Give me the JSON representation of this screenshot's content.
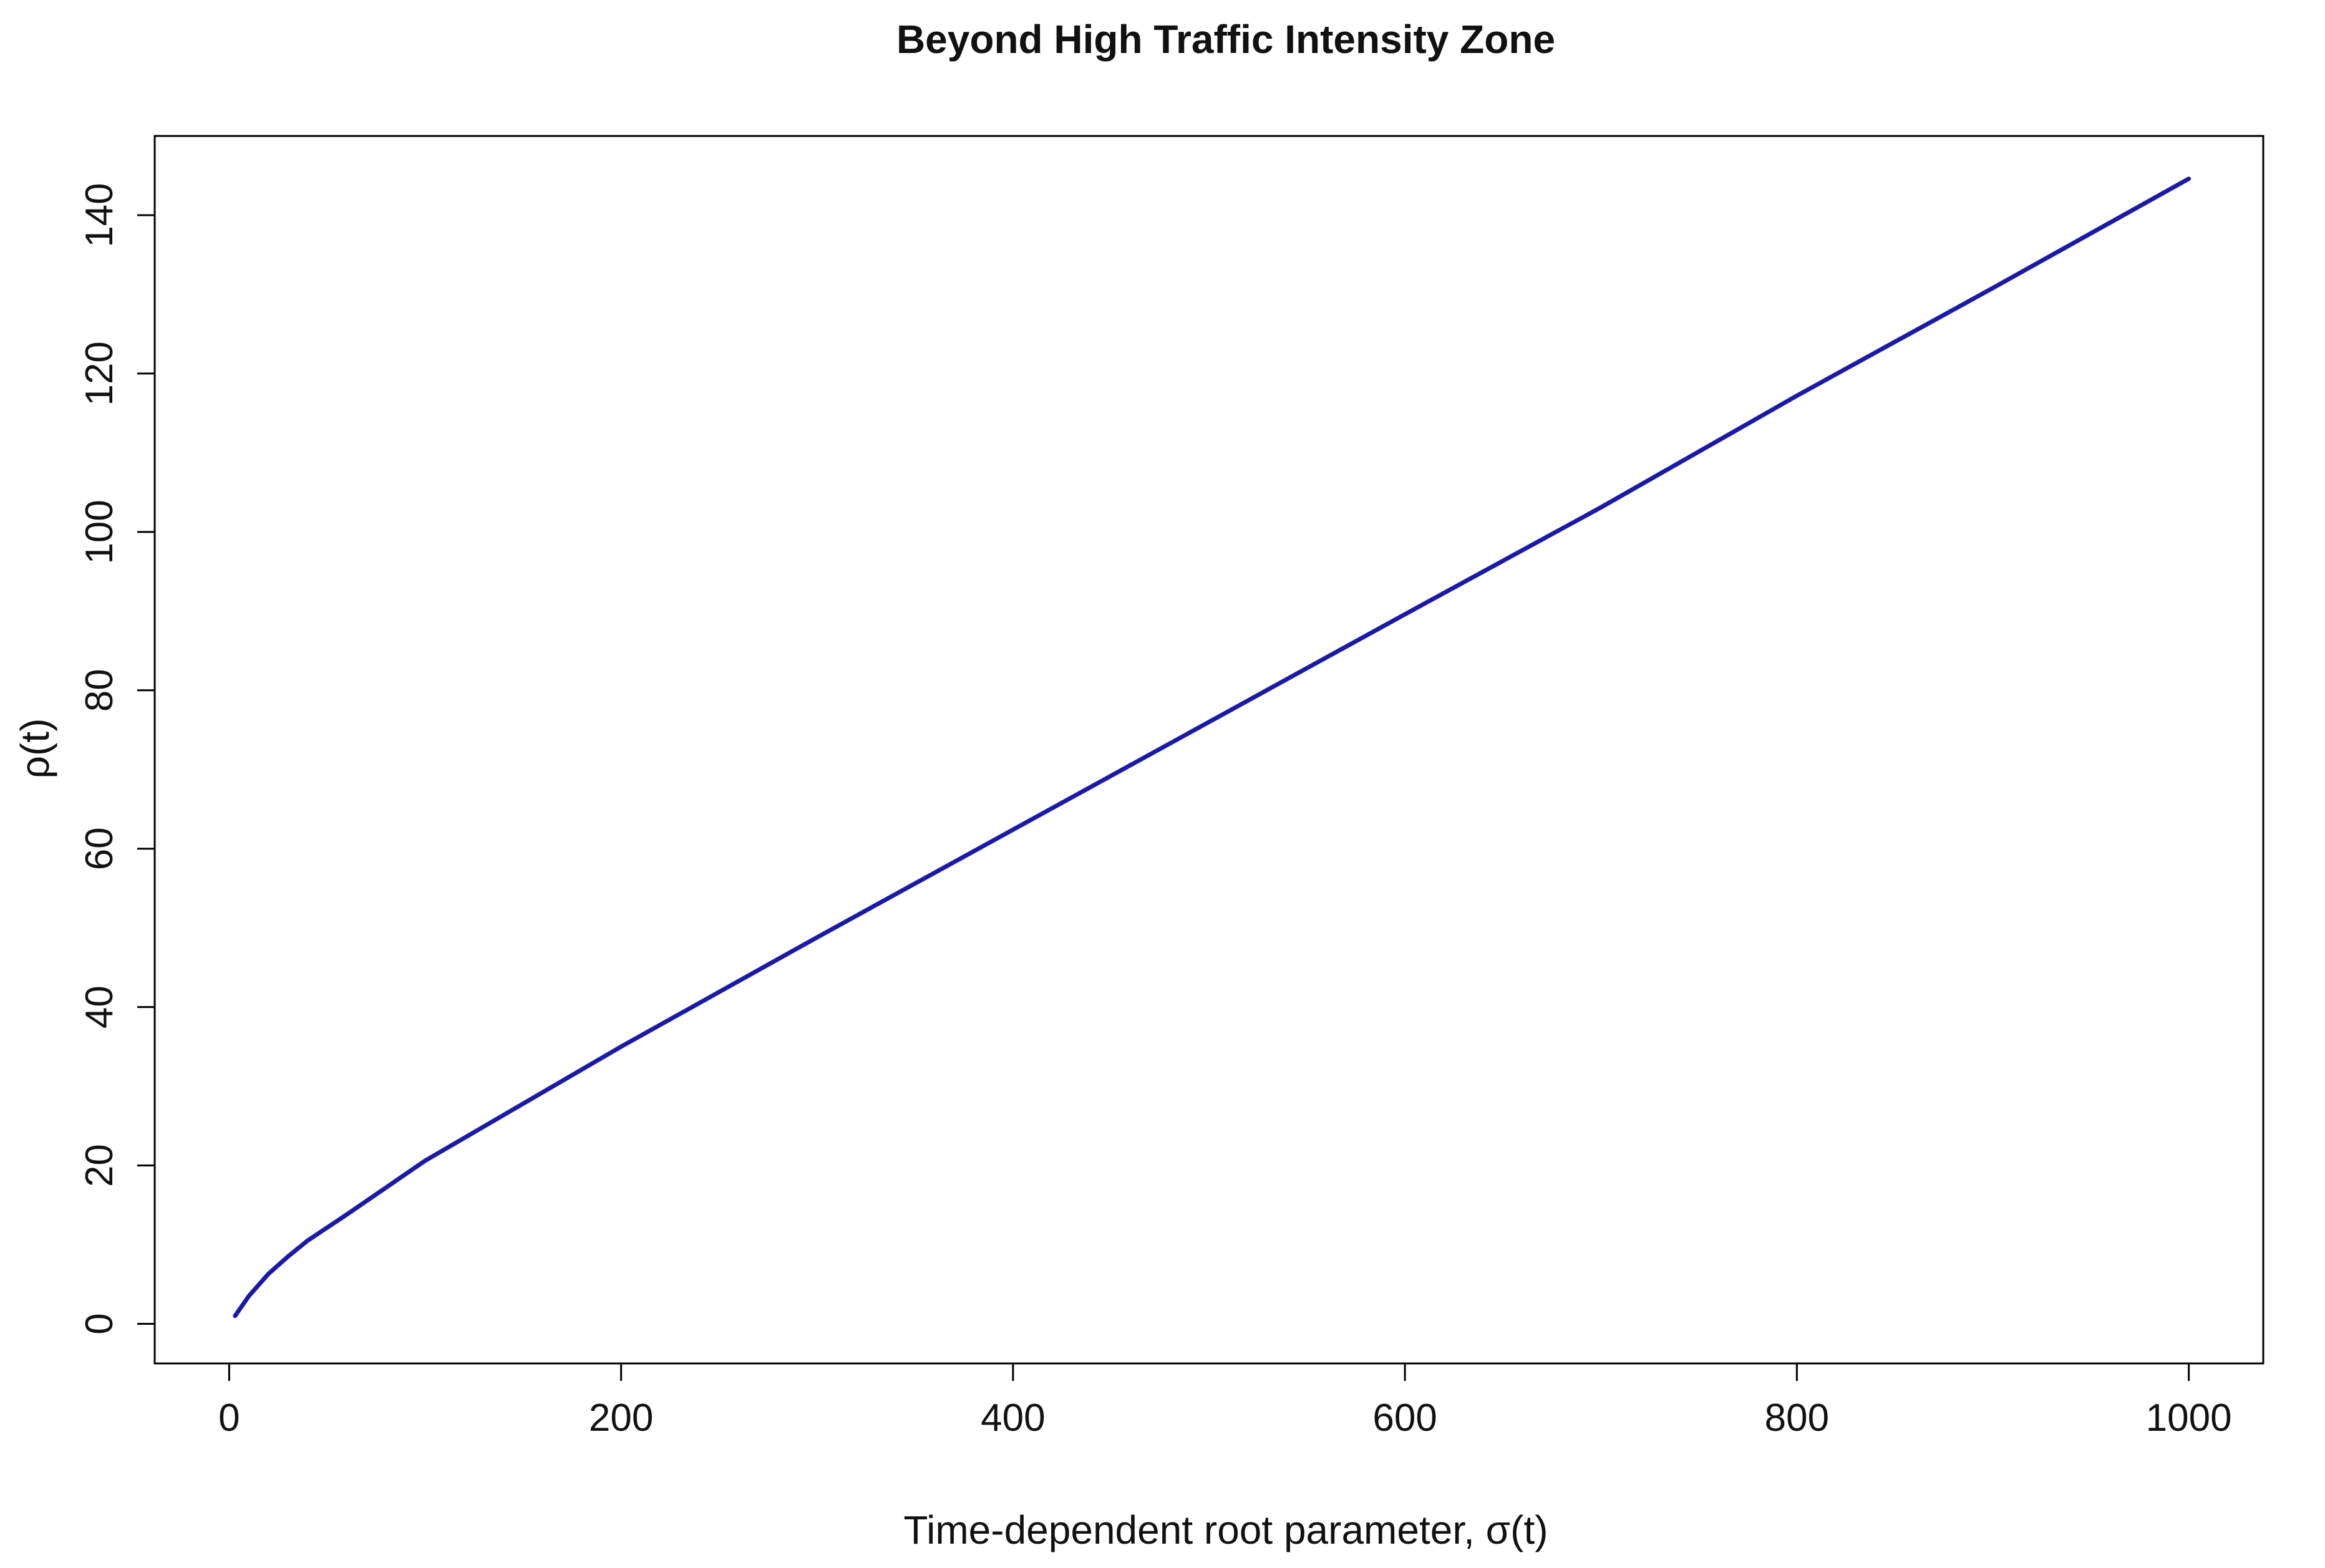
{
  "chart_data": {
    "type": "line",
    "title": "Beyond High Traffic Intensity Zone",
    "xlabel": "Time-dependent root parameter, σ(t)",
    "ylabel": "ρ(t)",
    "xlim": [
      -38,
      1038
    ],
    "ylim": [
      -5,
      150
    ],
    "x_ticks": [
      0,
      200,
      400,
      600,
      800,
      1000
    ],
    "y_ticks": [
      0,
      20,
      40,
      60,
      80,
      100,
      120,
      140
    ],
    "x_tick_labels": [
      "0",
      "200",
      "400",
      "600",
      "800",
      "1000"
    ],
    "y_tick_labels": [
      "0",
      "20",
      "40",
      "60",
      "80",
      "100",
      "120",
      "140"
    ],
    "grid": false,
    "line_color": "#1a1aa6",
    "series": [
      {
        "x": [
          3,
          10,
          20,
          30,
          40,
          60,
          80,
          100,
          150,
          200,
          300,
          400,
          500,
          600,
          700,
          800,
          900,
          1000
        ],
        "y": [
          1,
          3.5,
          6.3,
          8.5,
          10.5,
          13.8,
          17.2,
          20.6,
          27.8,
          35,
          48.8,
          62.4,
          76,
          89.6,
          103.1,
          117.2,
          130.8,
          144.6
        ]
      }
    ]
  }
}
